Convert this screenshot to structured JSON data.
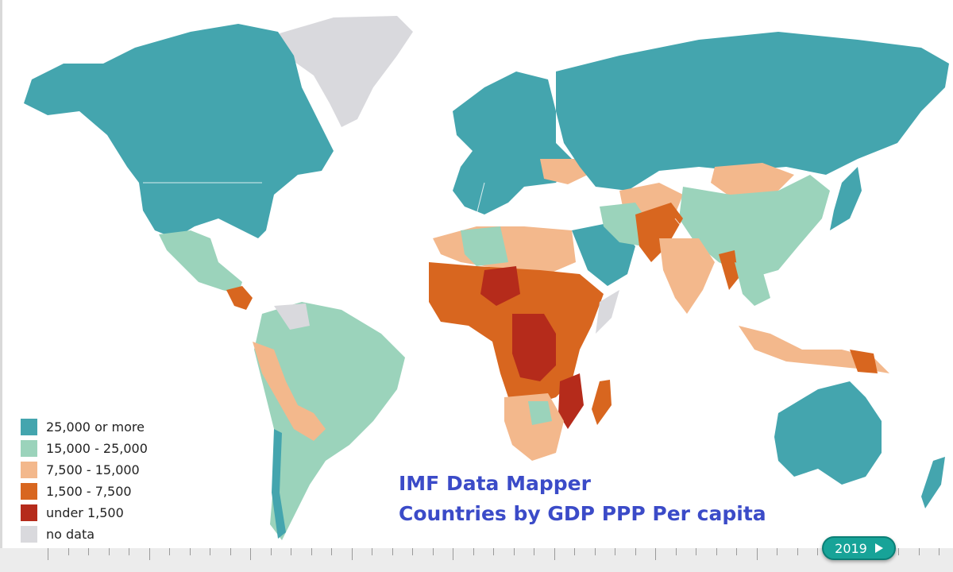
{
  "title": {
    "line1": "IMF Data Mapper",
    "line2": "Countries by GDP PPP Per capita"
  },
  "legend": [
    {
      "label": "25,000 or more",
      "color": "#44a5ae"
    },
    {
      "label": "15,000 - 25,000",
      "color": "#9bd3bb"
    },
    {
      "label": "7,500 - 15,000",
      "color": "#f3b88c"
    },
    {
      "label": "1,500 - 7,500",
      "color": "#d8661f"
    },
    {
      "label": "under 1,500",
      "color": "#b52b1b"
    },
    {
      "label": "no data",
      "color": "#d9d9dd"
    }
  ],
  "timeline": {
    "year": "2019",
    "play_icon": "play-icon"
  },
  "regions": [
    {
      "name": "greenland",
      "category": "no data"
    },
    {
      "name": "north-america",
      "category": "25,000 or more"
    },
    {
      "name": "mexico",
      "category": "15,000 - 25,000"
    },
    {
      "name": "south-america",
      "category": "15,000 - 25,000"
    },
    {
      "name": "europe",
      "category": "25,000 or more"
    },
    {
      "name": "russia",
      "category": "25,000 or more"
    },
    {
      "name": "africa-north",
      "category": "7,500 - 15,000"
    },
    {
      "name": "africa-central",
      "category": "under 1,500"
    },
    {
      "name": "india",
      "category": "7,500 - 15,000"
    },
    {
      "name": "china",
      "category": "15,000 - 25,000"
    },
    {
      "name": "australia",
      "category": "25,000 or more"
    }
  ]
}
